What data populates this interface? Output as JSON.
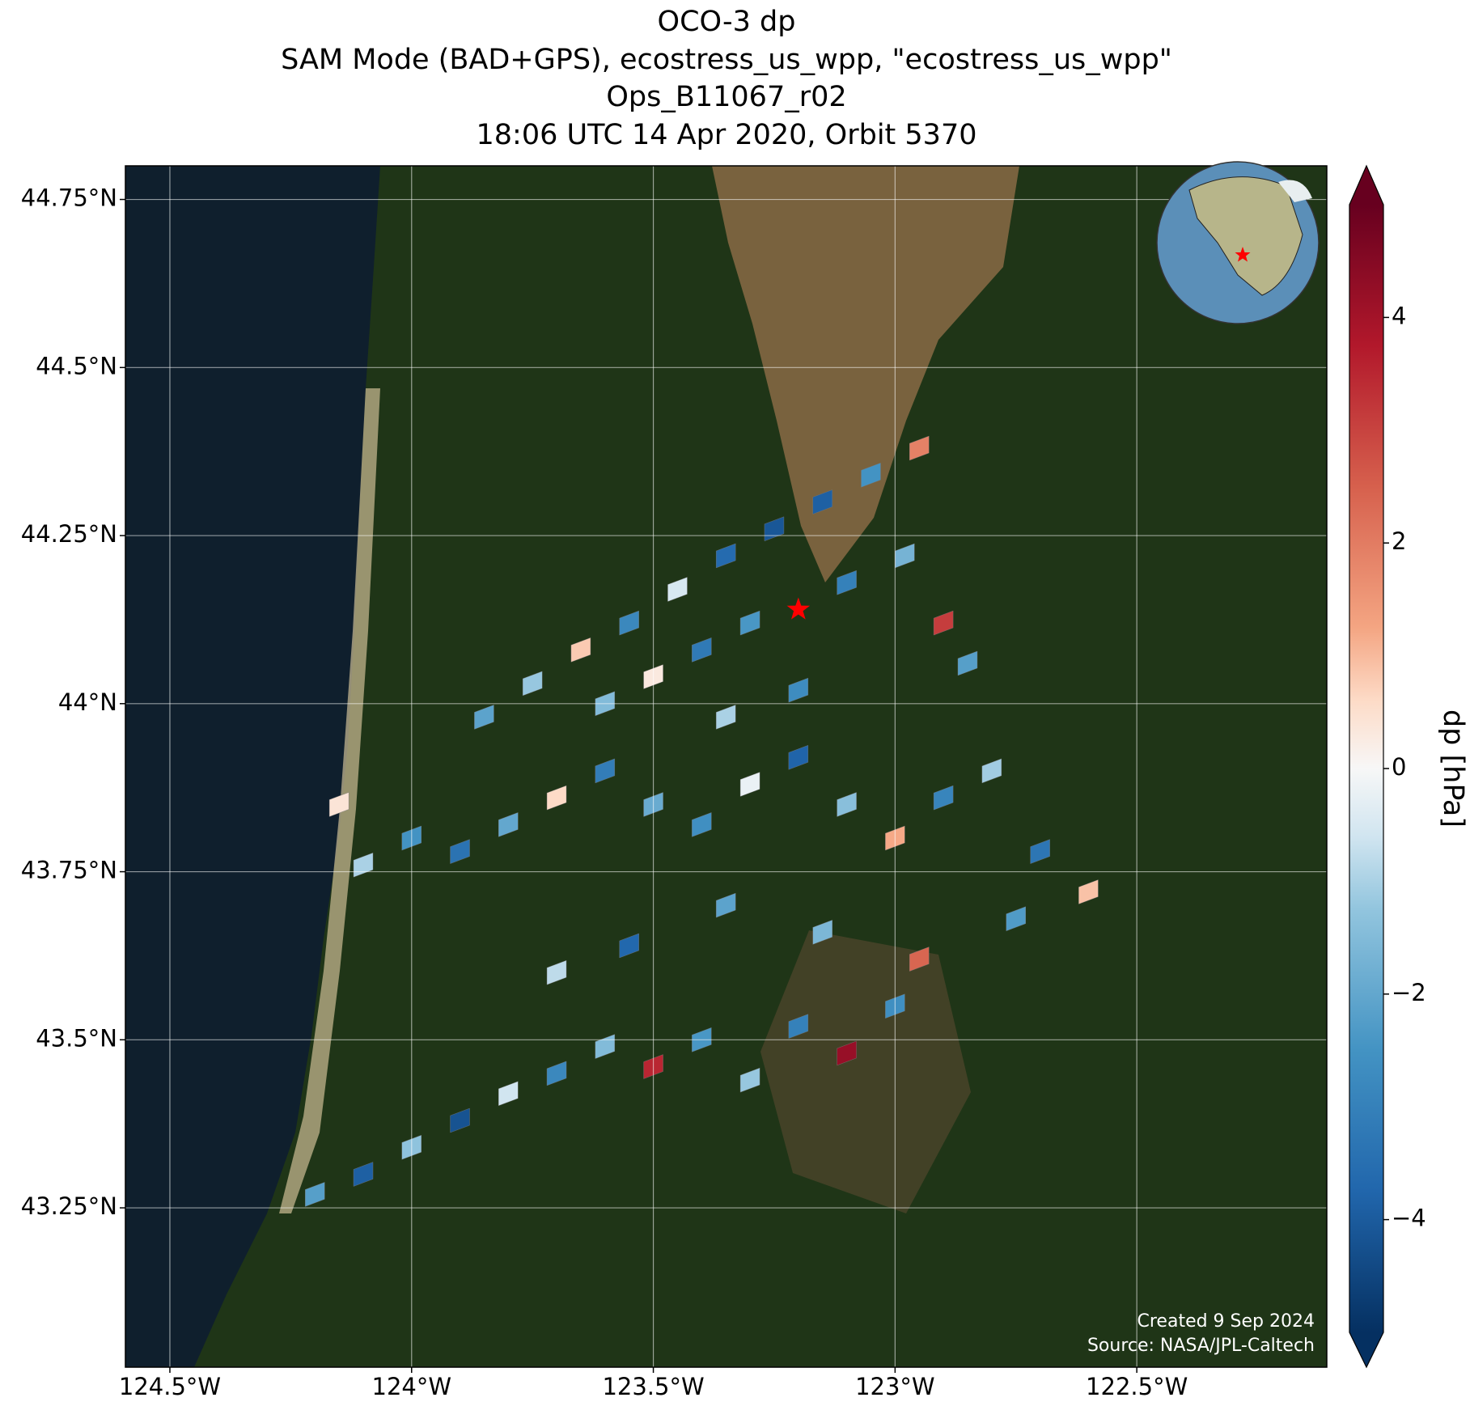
{
  "chart_data": {
    "type": "map",
    "title": [
      "OCO-3 dp",
      "SAM Mode (BAD+GPS), ecostress_us_wpp, \"ecostress_us_wpp\"",
      "Ops_B11067_r02",
      "18:06 UTC 14 Apr 2020, Orbit 5370"
    ],
    "xlim": [
      -124.592,
      -122.107
    ],
    "ylim": [
      43.013,
      44.8
    ],
    "xticks": [
      {
        "value": -124.5,
        "label": "124.5°W"
      },
      {
        "value": -124,
        "label": "124°W"
      },
      {
        "value": -123.5,
        "label": "123.5°W"
      },
      {
        "value": -123,
        "label": "123°W"
      },
      {
        "value": -122.5,
        "label": "122.5°W"
      }
    ],
    "yticks": [
      {
        "value": 44.75,
        "label": "44.75°N"
      },
      {
        "value": 44.5,
        "label": "44.5°N"
      },
      {
        "value": 44.25,
        "label": "44.25°N"
      },
      {
        "value": 44,
        "label": "44°N"
      },
      {
        "value": 43.75,
        "label": "43.75°N"
      },
      {
        "value": 43.5,
        "label": "43.5°N"
      },
      {
        "value": 43.25,
        "label": "43.25°N"
      }
    ],
    "grid": true,
    "colormap": "RdBu_r",
    "clim": [
      -5,
      5
    ],
    "colorbar_label": "dp [hPa]",
    "colorbar_ticks": [
      {
        "value": 4,
        "label": "4"
      },
      {
        "value": 2,
        "label": "2"
      },
      {
        "value": 0,
        "label": "0"
      },
      {
        "value": -2,
        "label": "−2"
      },
      {
        "value": -4,
        "label": "−4"
      }
    ],
    "target": [
      -123.2,
      44.14
    ],
    "footer": [
      "Created 9 Sep 2024",
      "Source: NASA/JPL-Caltech"
    ],
    "soundings": [
      [
        -123.85,
        43.98,
        -2.1
      ],
      [
        -123.75,
        44.03,
        -1.2
      ],
      [
        -123.65,
        44.08,
        0.8
      ],
      [
        -123.55,
        44.12,
        -2.8
      ],
      [
        -123.45,
        44.17,
        -0.5
      ],
      [
        -123.35,
        44.22,
        -3.6
      ],
      [
        -123.25,
        44.26,
        -4.1
      ],
      [
        -123.15,
        44.3,
        -3.9
      ],
      [
        -123.05,
        44.34,
        -2.5
      ],
      [
        -122.95,
        44.38,
        1.9
      ],
      [
        -123.6,
        44.0,
        -1.5
      ],
      [
        -123.5,
        44.04,
        0.3
      ],
      [
        -123.4,
        44.08,
        -3.2
      ],
      [
        -123.3,
        44.12,
        -2.4
      ],
      [
        -123.1,
        44.18,
        -3.0
      ],
      [
        -122.98,
        44.22,
        -1.7
      ],
      [
        -122.9,
        44.12,
        3.1
      ],
      [
        -122.85,
        44.06,
        -2.2
      ],
      [
        -123.35,
        43.98,
        -1.0
      ],
      [
        -123.2,
        44.02,
        -2.7
      ],
      [
        -123.9,
        43.78,
        -3.4
      ],
      [
        -123.8,
        43.82,
        -2.0
      ],
      [
        -123.7,
        43.86,
        0.6
      ],
      [
        -123.6,
        43.9,
        -3.1
      ],
      [
        -123.5,
        43.85,
        -1.9
      ],
      [
        -123.4,
        43.82,
        -2.6
      ],
      [
        -123.3,
        43.88,
        -0.2
      ],
      [
        -123.2,
        43.92,
        -3.8
      ],
      [
        -123.1,
        43.85,
        -1.4
      ],
      [
        -123.0,
        43.8,
        1.2
      ],
      [
        -122.9,
        43.86,
        -2.9
      ],
      [
        -122.8,
        43.9,
        -1.1
      ],
      [
        -122.7,
        43.78,
        -3.3
      ],
      [
        -122.6,
        43.72,
        0.9
      ],
      [
        -122.75,
        43.68,
        -2.3
      ],
      [
        -122.95,
        43.62,
        2.4
      ],
      [
        -123.15,
        43.66,
        -1.6
      ],
      [
        -123.35,
        43.7,
        -2.1
      ],
      [
        -123.55,
        43.64,
        -3.7
      ],
      [
        -123.7,
        43.6,
        -0.8
      ],
      [
        -124.2,
        43.27,
        -2.2
      ],
      [
        -124.1,
        43.3,
        -3.9
      ],
      [
        -124.0,
        43.34,
        -1.3
      ],
      [
        -123.9,
        43.38,
        -4.2
      ],
      [
        -123.8,
        43.42,
        -0.6
      ],
      [
        -123.7,
        43.45,
        -2.8
      ],
      [
        -123.6,
        43.49,
        -1.5
      ],
      [
        -123.5,
        43.46,
        3.5
      ],
      [
        -123.4,
        43.5,
        -2.4
      ],
      [
        -123.3,
        43.44,
        -1.2
      ],
      [
        -123.2,
        43.52,
        -3.0
      ],
      [
        -123.1,
        43.48,
        4.2
      ],
      [
        -123.0,
        43.55,
        -2.6
      ],
      [
        -124.0,
        43.8,
        -2.5
      ],
      [
        -124.1,
        43.76,
        -1.0
      ],
      [
        -124.15,
        43.85,
        0.4
      ]
    ]
  }
}
